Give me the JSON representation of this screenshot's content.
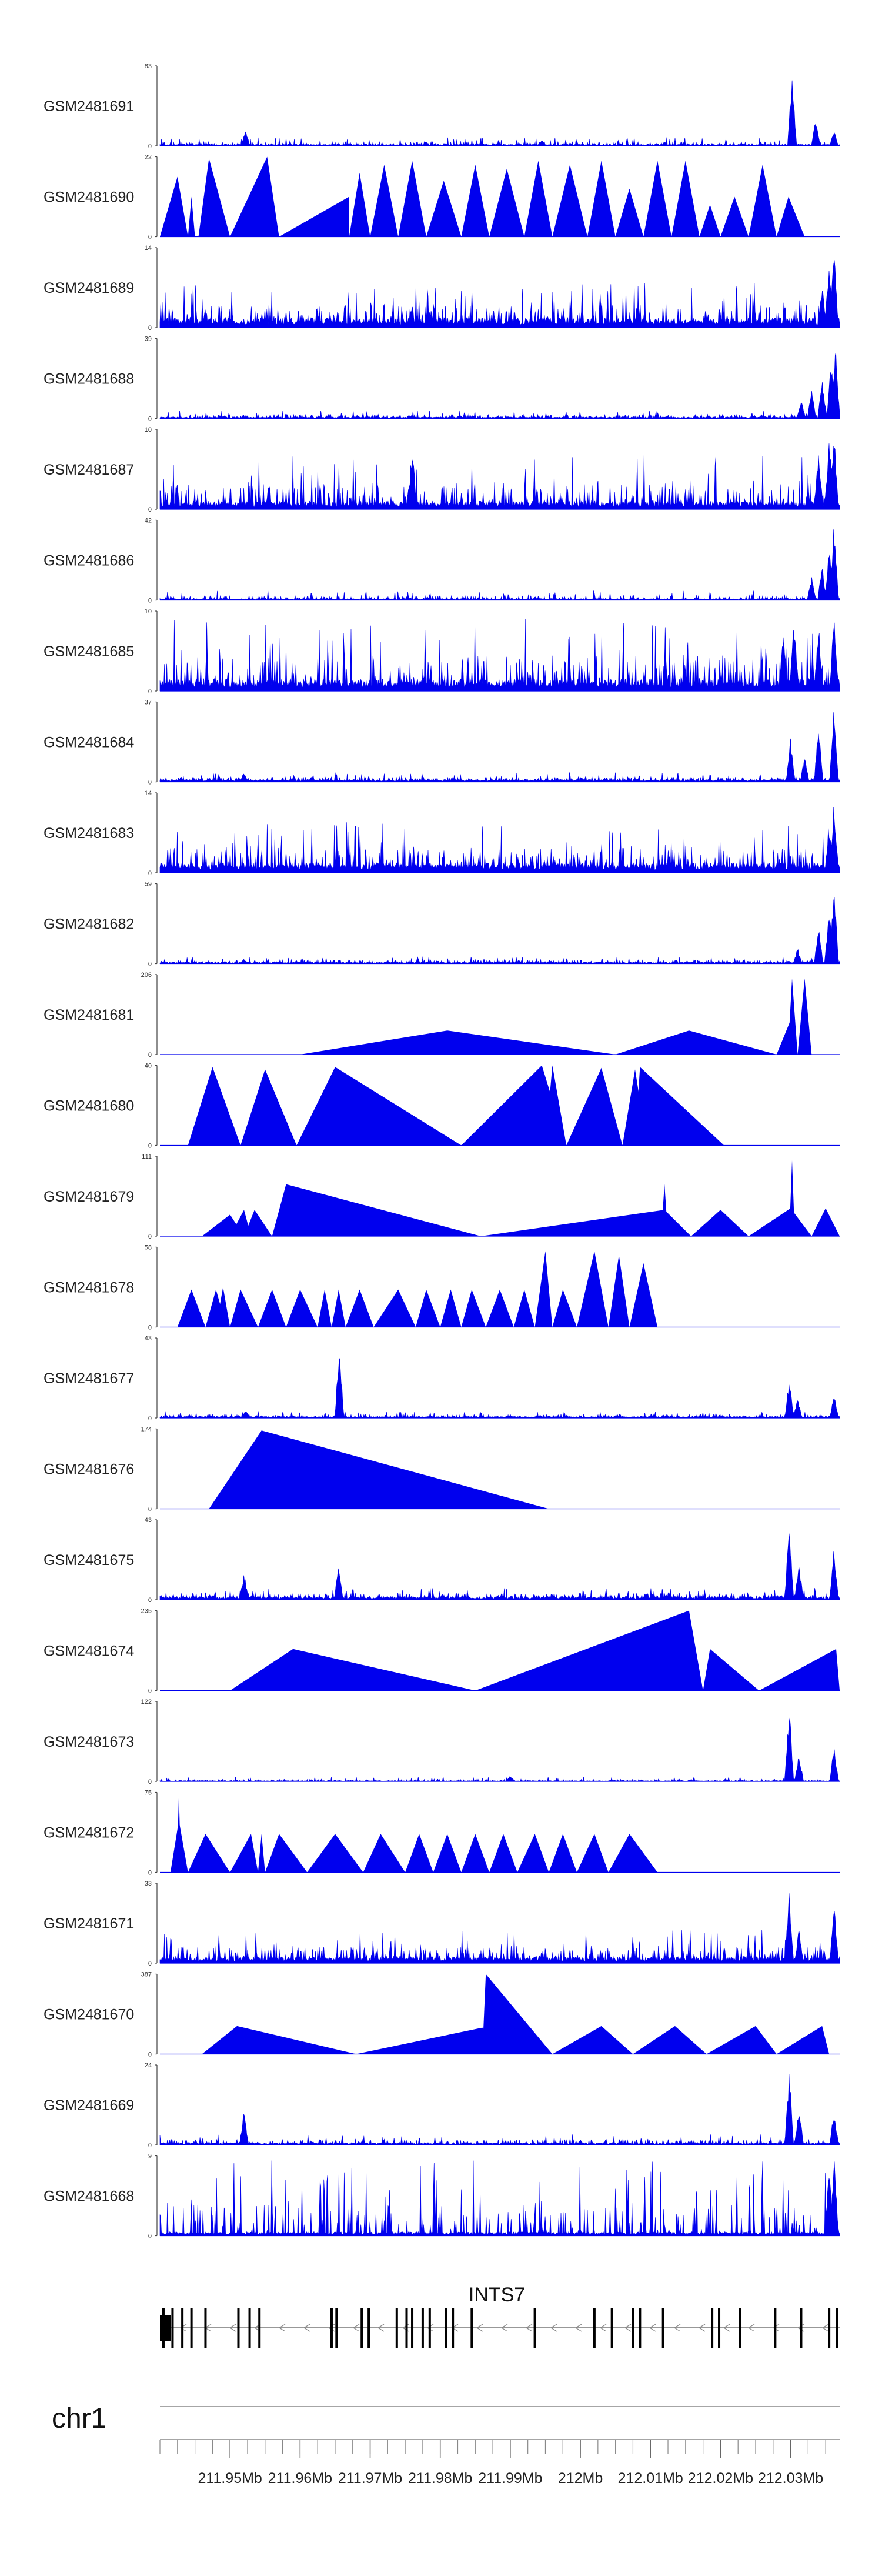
{
  "chart_data": {
    "type": "area",
    "title": "",
    "xlabel": "",
    "ylabel": "",
    "chromosome": "chr1",
    "xlim": [
      211.94,
      212.037
    ],
    "x_ticks": [
      "211.95Mb",
      "211.96Mb",
      "211.97Mb",
      "211.98Mb",
      "211.99Mb",
      "212Mb",
      "212.01Mb",
      "212.02Mb",
      "212.03Mb"
    ],
    "x_tick_values": [
      211.95,
      211.96,
      211.97,
      211.98,
      211.99,
      212.0,
      212.01,
      212.02,
      212.03
    ],
    "gene": {
      "name": "INTS7",
      "strand": "-",
      "start": 211.94,
      "end": 212.037,
      "exons": [
        211.9405,
        211.9418,
        211.9432,
        211.9445,
        211.9465,
        211.9512,
        211.9528,
        211.9542,
        211.9645,
        211.9652,
        211.9688,
        211.9698,
        211.9738,
        211.9752,
        211.976,
        211.9775,
        211.9785,
        211.9808,
        211.9818,
        211.9845,
        211.9935,
        212.002,
        212.0045,
        212.0075,
        212.0085,
        212.0118,
        212.0188,
        212.0198,
        212.0228,
        212.0278,
        212.0315,
        212.0355,
        212.0366
      ]
    },
    "tracks": [
      {
        "name": "GSM2481691",
        "ymax": 83,
        "style": "dense",
        "base": 0.02,
        "noise": 0.05,
        "spikes": [
          [
            211.9522,
            0.22
          ],
          [
            211.9945,
            0.08
          ],
          [
            212.0302,
            0.95
          ],
          [
            212.0336,
            0.35
          ],
          [
            212.0362,
            0.2
          ]
        ]
      },
      {
        "name": "GSM2481690",
        "ymax": 22,
        "style": "peaks",
        "peaks": [
          [
            211.94,
            211.9425,
            211.944,
            0.75
          ],
          [
            211.944,
            211.9445,
            211.945,
            0.5
          ],
          [
            211.9455,
            211.947,
            211.95,
            0.98
          ],
          [
            211.95,
            211.9553,
            211.957,
            1.0
          ],
          [
            211.957,
            211.967,
            211.967,
            0.5
          ],
          [
            211.967,
            211.9685,
            211.97,
            0.8
          ],
          [
            211.97,
            211.972,
            211.974,
            0.9
          ],
          [
            211.974,
            211.976,
            211.978,
            0.95
          ],
          [
            211.978,
            211.9805,
            211.983,
            0.7
          ],
          [
            211.983,
            211.985,
            211.987,
            0.9
          ],
          [
            211.987,
            211.9895,
            211.992,
            0.85
          ],
          [
            211.992,
            211.994,
            211.996,
            0.95
          ],
          [
            211.996,
            211.9985,
            212.001,
            0.9
          ],
          [
            212.001,
            212.003,
            212.005,
            0.95
          ],
          [
            212.005,
            212.007,
            212.009,
            0.6
          ],
          [
            212.009,
            212.011,
            212.013,
            0.95
          ],
          [
            212.013,
            212.015,
            212.017,
            0.95
          ],
          [
            212.017,
            212.0185,
            212.02,
            0.4
          ],
          [
            212.02,
            212.022,
            212.024,
            0.5
          ],
          [
            212.024,
            212.026,
            212.028,
            0.9
          ],
          [
            212.028,
            212.0297,
            212.032,
            0.5
          ]
        ]
      },
      {
        "name": "GSM2481689",
        "ymax": 14,
        "style": "dense",
        "base": 0.12,
        "noise": 0.25,
        "spikes": [
          [
            212.0355,
            0.9
          ],
          [
            212.0362,
            1.0
          ],
          [
            212.0345,
            0.55
          ]
        ]
      },
      {
        "name": "GSM2481688",
        "ymax": 39,
        "style": "dense",
        "base": 0.02,
        "noise": 0.05,
        "spikes": [
          [
            212.0315,
            0.25
          ],
          [
            212.033,
            0.35
          ],
          [
            212.0345,
            0.55
          ],
          [
            212.0358,
            0.75
          ],
          [
            212.0364,
            0.95
          ]
        ]
      },
      {
        "name": "GSM2481687",
        "ymax": 10,
        "style": "dense",
        "base": 0.1,
        "noise": 0.35,
        "spikes": [
          [
            211.976,
            0.85
          ],
          [
            212.034,
            0.8
          ],
          [
            212.0355,
            0.95
          ],
          [
            212.0362,
            1.0
          ]
        ]
      },
      {
        "name": "GSM2481686",
        "ymax": 42,
        "style": "dense",
        "base": 0.02,
        "noise": 0.06,
        "spikes": [
          [
            212.033,
            0.3
          ],
          [
            212.0345,
            0.45
          ],
          [
            212.0355,
            0.7
          ],
          [
            212.0362,
            1.0
          ]
        ]
      },
      {
        "name": "GSM2481685",
        "ymax": 10,
        "style": "dense",
        "base": 0.15,
        "noise": 0.45,
        "spikes": [
          [
            212.029,
            0.8
          ],
          [
            212.0305,
            0.95
          ],
          [
            212.034,
            0.9
          ],
          [
            212.0362,
            1.0
          ]
        ]
      },
      {
        "name": "GSM2481684",
        "ymax": 37,
        "style": "dense",
        "base": 0.03,
        "noise": 0.05,
        "spikes": [
          [
            211.952,
            0.12
          ],
          [
            212.03,
            0.55
          ],
          [
            212.032,
            0.35
          ],
          [
            212.034,
            0.8
          ],
          [
            212.0362,
            1.0
          ]
        ]
      },
      {
        "name": "GSM2481683",
        "ymax": 14,
        "style": "dense",
        "base": 0.12,
        "noise": 0.3,
        "spikes": [
          [
            212.0362,
            0.95
          ],
          [
            212.0355,
            0.6
          ]
        ]
      },
      {
        "name": "GSM2481682",
        "ymax": 59,
        "style": "dense",
        "base": 0.02,
        "noise": 0.04,
        "spikes": [
          [
            211.952,
            0.06
          ],
          [
            212.031,
            0.2
          ],
          [
            212.034,
            0.5
          ],
          [
            212.0355,
            0.75
          ],
          [
            212.0362,
            1.0
          ]
        ]
      },
      {
        "name": "GSM2481681",
        "ymax": 206,
        "style": "peaks",
        "peaks": [
          [
            211.96,
            211.981,
            212.005,
            0.3
          ],
          [
            212.005,
            212.0155,
            212.028,
            0.3
          ],
          [
            212.028,
            212.03,
            212.0306,
            0.43
          ],
          [
            212.0296,
            212.0302,
            212.031,
            0.95
          ],
          [
            212.031,
            212.032,
            212.033,
            0.95
          ]
        ]
      },
      {
        "name": "GSM2481680",
        "ymax": 40,
        "style": "peaks",
        "peaks": [
          [
            211.944,
            211.9475,
            211.9515,
            0.98
          ],
          [
            211.9515,
            211.955,
            211.9595,
            0.95
          ],
          [
            211.9595,
            211.965,
            211.983,
            0.98
          ],
          [
            211.983,
            211.9945,
            211.998,
            1.0
          ],
          [
            211.995,
            211.996,
            211.998,
            1.0
          ],
          [
            211.998,
            212.003,
            212.006,
            0.97
          ],
          [
            212.006,
            212.0078,
            212.0095,
            0.95
          ],
          [
            212.0078,
            212.0085,
            212.0205,
            0.98
          ]
        ]
      },
      {
        "name": "GSM2481679",
        "ymax": 111,
        "style": "peaks",
        "peaks": [
          [
            211.946,
            211.95,
            211.952,
            0.27
          ],
          [
            211.95,
            211.952,
            211.953,
            0.33
          ],
          [
            211.952,
            211.9535,
            211.956,
            0.33
          ],
          [
            211.956,
            211.958,
            211.9858,
            0.65
          ],
          [
            211.9858,
            212.012,
            212.0158,
            0.33
          ],
          [
            212.0115,
            212.012,
            212.0125,
            0.65
          ],
          [
            212.0158,
            212.02,
            212.024,
            0.33
          ],
          [
            212.024,
            212.03,
            212.033,
            0.35
          ],
          [
            212.0298,
            212.0302,
            212.0306,
            0.95
          ],
          [
            212.033,
            212.035,
            212.037,
            0.35
          ]
        ]
      },
      {
        "name": "GSM2481678",
        "ymax": 58,
        "style": "peaks",
        "peaks": [
          [
            211.9425,
            211.9445,
            211.9465,
            0.47
          ],
          [
            211.9465,
            211.948,
            211.9495,
            0.47
          ],
          [
            211.948,
            211.949,
            211.95,
            0.5
          ],
          [
            211.95,
            211.9515,
            211.954,
            0.47
          ],
          [
            211.954,
            211.956,
            211.958,
            0.47
          ],
          [
            211.958,
            211.96,
            211.9625,
            0.47
          ],
          [
            211.9625,
            211.9635,
            211.9645,
            0.47
          ],
          [
            211.9645,
            211.9655,
            211.9665,
            0.47
          ],
          [
            211.9665,
            211.9685,
            211.9705,
            0.47
          ],
          [
            211.9705,
            211.974,
            211.9765,
            0.47
          ],
          [
            211.9765,
            211.978,
            211.98,
            0.47
          ],
          [
            211.98,
            211.9815,
            211.983,
            0.47
          ],
          [
            211.983,
            211.9845,
            211.9865,
            0.47
          ],
          [
            211.9865,
            211.9885,
            211.9905,
            0.47
          ],
          [
            211.9905,
            211.992,
            211.9935,
            0.47
          ],
          [
            211.9935,
            211.995,
            211.996,
            0.95
          ],
          [
            211.996,
            211.9975,
            211.9995,
            0.47
          ],
          [
            211.9995,
            212.002,
            212.004,
            0.95
          ],
          [
            212.004,
            212.0055,
            212.007,
            0.9
          ],
          [
            212.007,
            212.009,
            212.011,
            0.8
          ]
        ]
      },
      {
        "name": "GSM2481677",
        "ymax": 43,
        "style": "dense",
        "base": 0.02,
        "noise": 0.04,
        "spikes": [
          [
            211.9522,
            0.1
          ],
          [
            211.9656,
            1.0
          ],
          [
            212.0298,
            0.5
          ],
          [
            212.031,
            0.25
          ],
          [
            212.0362,
            0.3
          ]
        ]
      },
      {
        "name": "GSM2481676",
        "ymax": 174,
        "style": "peaks",
        "peaks": [
          [
            211.947,
            211.9545,
            211.9955,
            0.98
          ]
        ]
      },
      {
        "name": "GSM2481675",
        "ymax": 43,
        "style": "dense",
        "base": 0.04,
        "noise": 0.06,
        "spikes": [
          [
            211.952,
            0.35
          ],
          [
            211.9655,
            0.48
          ],
          [
            212.0298,
            0.98
          ],
          [
            212.0312,
            0.45
          ],
          [
            212.0362,
            0.7
          ]
        ]
      },
      {
        "name": "GSM2481674",
        "ymax": 235,
        "style": "peaks",
        "peaks": [
          [
            211.95,
            211.959,
            211.985,
            0.52
          ],
          [
            211.985,
            212.0155,
            212.0175,
            1.0
          ],
          [
            212.0175,
            212.0185,
            212.0255,
            0.52
          ],
          [
            212.0255,
            212.0365,
            212.037,
            0.52
          ]
        ]
      },
      {
        "name": "GSM2481673",
        "ymax": 122,
        "style": "dense",
        "base": 0.01,
        "noise": 0.03,
        "spikes": [
          [
            211.99,
            0.08
          ],
          [
            212.0298,
            1.0
          ],
          [
            212.0312,
            0.35
          ],
          [
            212.0362,
            0.45
          ]
        ]
      },
      {
        "name": "GSM2481672",
        "ymax": 75,
        "style": "peaks",
        "peaks": [
          [
            211.9415,
            211.9427,
            211.944,
            0.65
          ],
          [
            211.9424,
            211.9427,
            211.943,
            0.98
          ],
          [
            211.944,
            211.9465,
            211.95,
            0.48
          ],
          [
            211.95,
            211.953,
            211.954,
            0.48
          ],
          [
            211.954,
            211.9545,
            211.955,
            0.48
          ],
          [
            211.955,
            211.957,
            211.961,
            0.48
          ],
          [
            211.961,
            211.965,
            211.969,
            0.48
          ],
          [
            211.969,
            211.9715,
            211.975,
            0.48
          ],
          [
            211.975,
            211.977,
            211.979,
            0.48
          ],
          [
            211.979,
            211.981,
            211.983,
            0.48
          ],
          [
            211.983,
            211.985,
            211.987,
            0.48
          ],
          [
            211.987,
            211.989,
            211.991,
            0.48
          ],
          [
            211.991,
            211.9935,
            211.9955,
            0.48
          ],
          [
            211.9955,
            211.9975,
            211.9995,
            0.48
          ],
          [
            211.9995,
            212.002,
            212.004,
            0.48
          ],
          [
            212.004,
            212.007,
            212.011,
            0.48
          ]
        ]
      },
      {
        "name": "GSM2481671",
        "ymax": 33,
        "style": "dense",
        "base": 0.08,
        "noise": 0.2,
        "spikes": [
          [
            212.0298,
            0.95
          ],
          [
            212.0312,
            0.45
          ],
          [
            212.0362,
            0.8
          ]
        ]
      },
      {
        "name": "GSM2481670",
        "ymax": 387,
        "style": "peaks",
        "peaks": [
          [
            211.946,
            211.951,
            211.968,
            0.35
          ],
          [
            211.968,
            211.986,
            211.9905,
            0.33
          ],
          [
            211.986,
            211.9865,
            211.996,
            1.0
          ],
          [
            211.996,
            212.003,
            212.0075,
            0.35
          ],
          [
            212.0075,
            212.0135,
            212.018,
            0.35
          ],
          [
            212.018,
            212.025,
            212.028,
            0.35
          ],
          [
            212.028,
            212.0345,
            212.0355,
            0.35
          ]
        ]
      },
      {
        "name": "GSM2481669",
        "ymax": 24,
        "style": "dense",
        "base": 0.03,
        "noise": 0.06,
        "spikes": [
          [
            211.952,
            0.45
          ],
          [
            212.0298,
            0.95
          ],
          [
            212.0312,
            0.5
          ],
          [
            212.0362,
            0.45
          ]
        ]
      },
      {
        "name": "GSM2481668",
        "ymax": 9,
        "style": "dense",
        "base": 0.05,
        "noise": 0.55,
        "spikes": [
          [
            212.0362,
            1.0
          ],
          [
            212.0355,
            0.9
          ]
        ]
      }
    ]
  }
}
